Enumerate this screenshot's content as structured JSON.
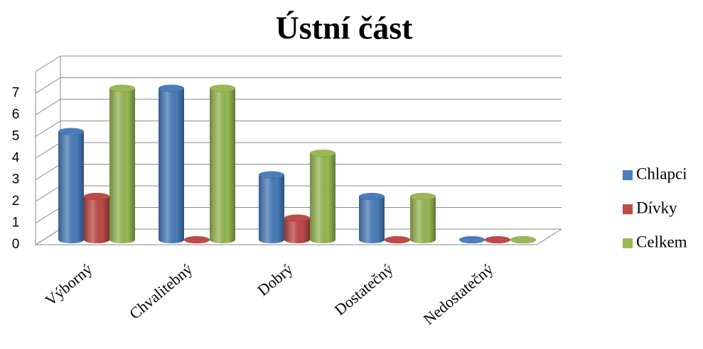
{
  "chart_data": {
    "type": "bar",
    "title": "Ústní část",
    "categories": [
      "Výborný",
      "Chvalitebný",
      "Dobrý",
      "Dostatečný",
      "Nedostatečný"
    ],
    "series": [
      {
        "name": "Chlapci",
        "color": "#4a7ebb",
        "values": [
          5,
          7,
          3,
          2,
          0
        ]
      },
      {
        "name": "Dívky",
        "color": "#be4b48",
        "values": [
          2,
          0,
          1,
          0,
          0
        ]
      },
      {
        "name": "Celkem",
        "color": "#98b954",
        "values": [
          7,
          7,
          4,
          2,
          0
        ]
      }
    ],
    "ylim": [
      0,
      8
    ],
    "yticks": [
      0,
      1,
      2,
      3,
      4,
      5,
      6,
      7
    ],
    "grid": true,
    "legend": "right"
  }
}
